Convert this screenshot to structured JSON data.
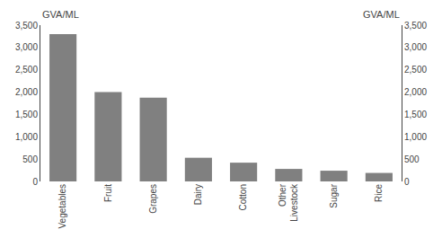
{
  "chart_data": {
    "type": "bar",
    "categories": [
      "Vegetables",
      "Fruit",
      "Grapes",
      "Dairy",
      "Cotton",
      "Other\nLivestock",
      "Sugar",
      "Rice"
    ],
    "values": [
      3300,
      2000,
      1875,
      530,
      420,
      280,
      240,
      190
    ],
    "color": "#808080",
    "ylabel": "GVA/ML",
    "y2label": "GVA/ML",
    "ylim": [
      0,
      3500
    ],
    "yticks": [
      0,
      500,
      {
        "value": 1000,
        "label": "1,000"
      },
      {
        "value": 1500,
        "label": "1,500"
      },
      {
        "value": 2000,
        "label": "2,000"
      },
      {
        "value": 2500,
        "label": "2,500"
      },
      {
        "value": 3000,
        "label": "3,000"
      },
      {
        "value": 3500,
        "label": "3,500"
      }
    ],
    "y2lim": [
      0,
      3500
    ],
    "y2ticks": [
      0,
      500,
      {
        "value": 1000,
        "label": "1,000"
      },
      {
        "value": 1500,
        "label": "1,500"
      },
      {
        "value": 2000,
        "label": "2,000"
      },
      {
        "value": 2500,
        "label": "2,500"
      },
      {
        "value": 3000,
        "label": "3,000"
      },
      {
        "value": 3500,
        "label": "3,500"
      }
    ],
    "grid": false
  }
}
